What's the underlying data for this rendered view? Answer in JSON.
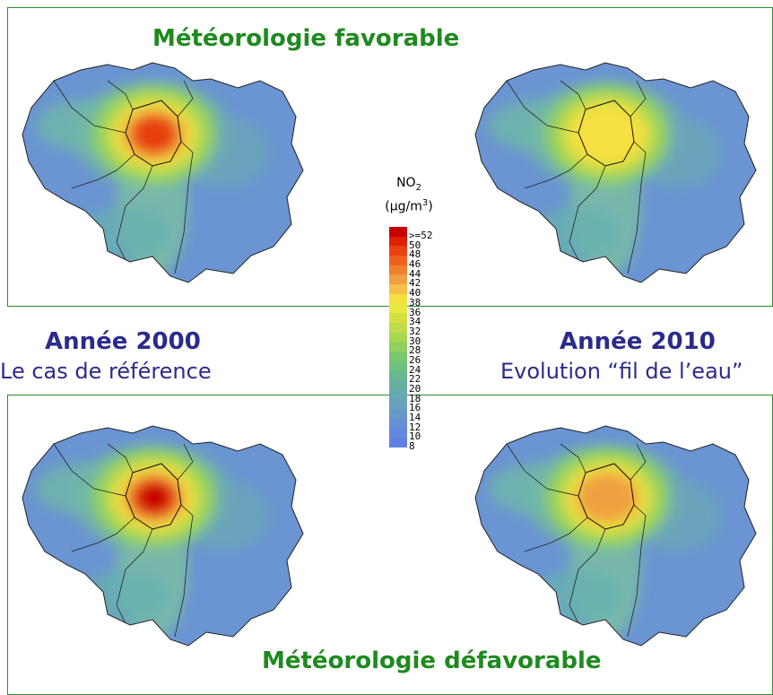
{
  "titles": {
    "favorable": "Météorologie favorable",
    "defavorable": "Météorologie défavorable"
  },
  "left": {
    "year": "Année 2000",
    "subtitle": "Le cas de référence"
  },
  "right": {
    "year": "Année 2010",
    "subtitle": "Evolution “fil de l’eau”"
  },
  "legend": {
    "title_main": "NO",
    "title_sub": "2",
    "unit_main": "(µg/m",
    "unit_sup": "3",
    "unit_end": ")",
    "levels": [
      ">=52",
      "50",
      "48",
      "46",
      "44",
      "42",
      "40",
      "38",
      "36",
      "34",
      "32",
      "30",
      "28",
      "26",
      "24",
      "22",
      "20",
      "18",
      "16",
      "14",
      "12",
      "10",
      "8"
    ],
    "colors": [
      "#c80000",
      "#dc2000",
      "#e84010",
      "#ee6020",
      "#f08030",
      "#f0a040",
      "#f4c048",
      "#f4e040",
      "#e8e840",
      "#d4e040",
      "#c0dc48",
      "#a8d850",
      "#90d060",
      "#7cc86c",
      "#70c080",
      "#68b890",
      "#68b0a0",
      "#68a8b0",
      "#6aa0bc",
      "#6898c8",
      "#6890d4",
      "#6488dc",
      "#6080e4"
    ]
  },
  "maps": [
    {
      "name": "map-2000-favorable",
      "hotspot": "strong"
    },
    {
      "name": "map-2010-favorable",
      "hotspot": "weak"
    },
    {
      "name": "map-2000-defavorable",
      "hotspot": "very-strong"
    },
    {
      "name": "map-2010-defavorable",
      "hotspot": "moderate"
    }
  ]
}
